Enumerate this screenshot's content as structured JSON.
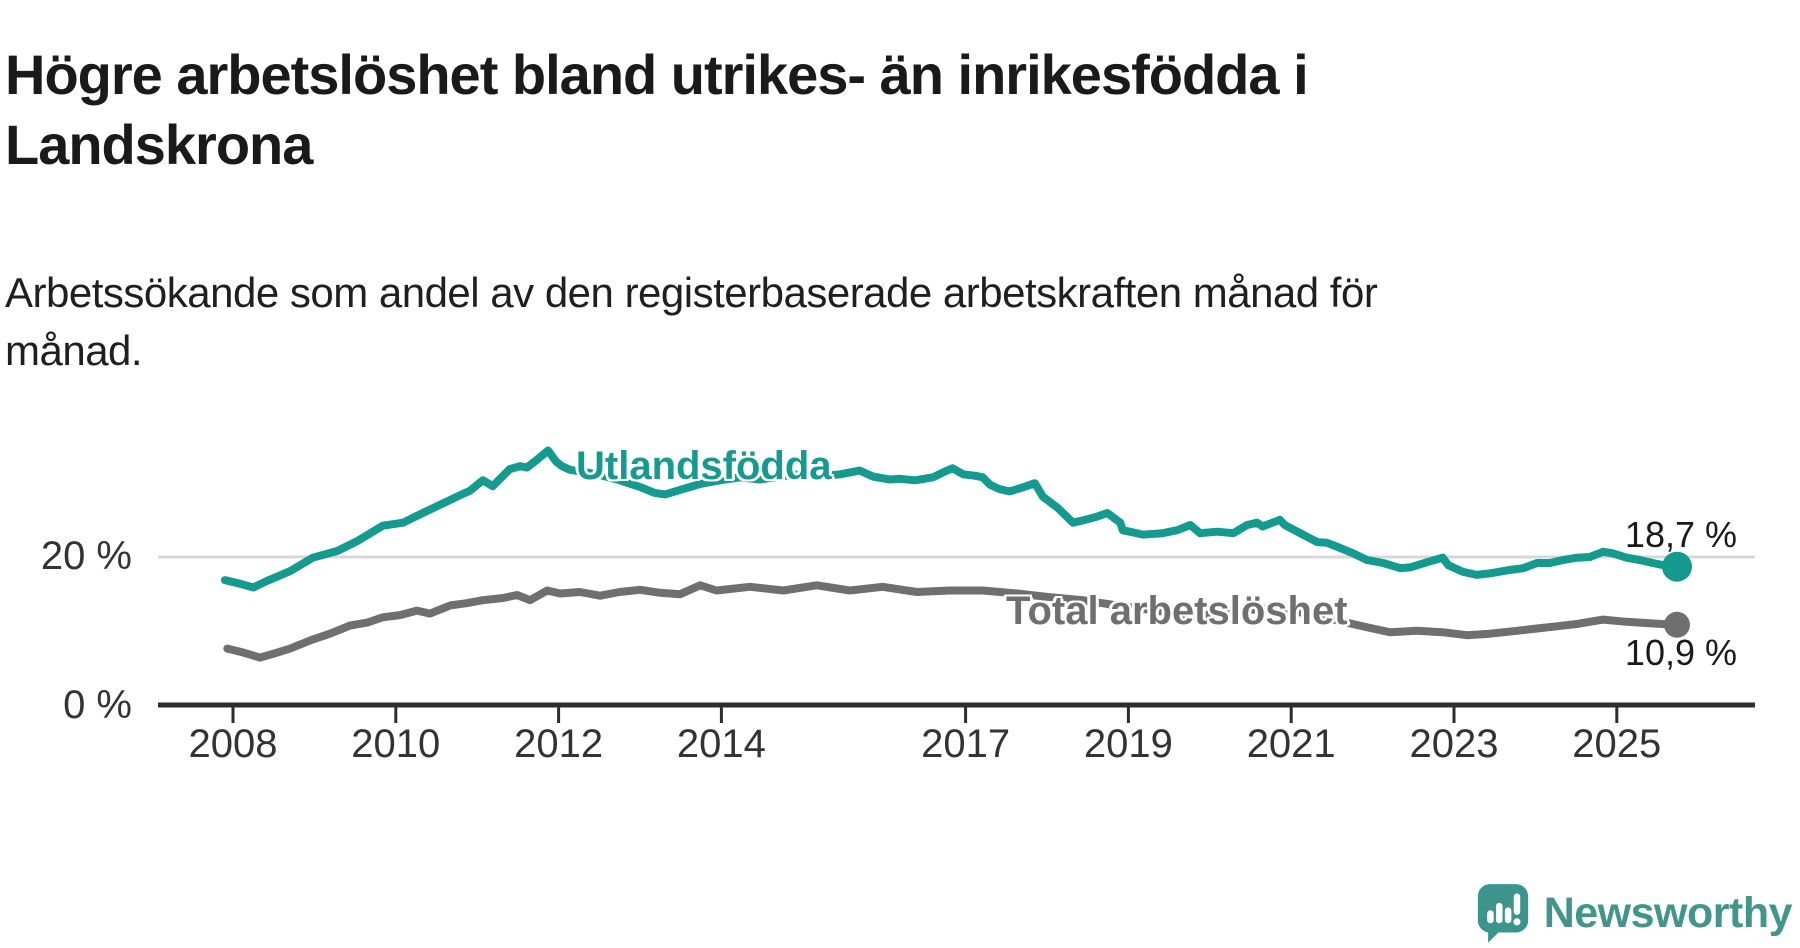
{
  "title_lines": [
    "Högre arbetslöshet bland utrikes- än inrikesfödda i",
    "Landskrona"
  ],
  "subtitle_lines": [
    "Arbetssökande som andel av den registerbaserade arbetskraften månad för",
    "månad."
  ],
  "footer": {
    "brand": "Newsworthy"
  },
  "chart_data": {
    "type": "line",
    "title": "Högre arbetslöshet bland utrikes- än inrikesfödda i Landskrona",
    "subtitle": "Arbetssökande som andel av den registerbaserade arbetskraften månad för månad.",
    "unit": "%",
    "xlim": [
      2007.9,
      2026.8
    ],
    "ylim": [
      0,
      36
    ],
    "grid": "horizontal line at 20% only",
    "legend_position": "inline labels on lines",
    "xticks": [
      2008,
      2010,
      2012,
      2014,
      2017,
      2019,
      2021,
      2023,
      2025
    ],
    "yticks": [
      {
        "value": 0,
        "label": "0 %"
      },
      {
        "value": 20,
        "label": "20 %"
      }
    ],
    "series": [
      {
        "id": "utlandsfodda",
        "name": "Utlandsfödda",
        "color": "#149a8e",
        "end_value": 18.7,
        "end_label": "18,7 %",
        "points": [
          [
            2007.9,
            16.9
          ],
          [
            2008.09,
            16.4
          ],
          [
            2008.25,
            15.9
          ],
          [
            2008.42,
            16.8
          ],
          [
            2008.7,
            18.1
          ],
          [
            2008.98,
            19.9
          ],
          [
            2009.28,
            20.8
          ],
          [
            2009.52,
            22.1
          ],
          [
            2009.84,
            24.2
          ],
          [
            2010.09,
            24.6
          ],
          [
            2010.33,
            25.9
          ],
          [
            2010.58,
            27.2
          ],
          [
            2010.79,
            28.3
          ],
          [
            2010.91,
            28.9
          ],
          [
            2011.07,
            30.3
          ],
          [
            2011.19,
            29.5
          ],
          [
            2011.4,
            31.8
          ],
          [
            2011.53,
            32.2
          ],
          [
            2011.61,
            32.0
          ],
          [
            2011.73,
            33.0
          ],
          [
            2011.87,
            34.3
          ],
          [
            2011.97,
            32.8
          ],
          [
            2012.04,
            32.2
          ],
          [
            2012.14,
            31.7
          ],
          [
            2012.32,
            31.4
          ],
          [
            2012.51,
            31.0
          ],
          [
            2012.75,
            30.3
          ],
          [
            2013.0,
            29.4
          ],
          [
            2013.18,
            28.6
          ],
          [
            2013.31,
            28.4
          ],
          [
            2013.49,
            29.0
          ],
          [
            2013.74,
            29.8
          ],
          [
            2013.98,
            30.3
          ],
          [
            2014.23,
            30.7
          ],
          [
            2014.47,
            30.4
          ],
          [
            2014.72,
            30.8
          ],
          [
            2014.96,
            31.1
          ],
          [
            2015.21,
            30.8
          ],
          [
            2015.46,
            31.1
          ],
          [
            2015.7,
            31.6
          ],
          [
            2015.86,
            30.8
          ],
          [
            2016.07,
            30.4
          ],
          [
            2016.19,
            30.5
          ],
          [
            2016.38,
            30.3
          ],
          [
            2016.6,
            30.7
          ],
          [
            2016.75,
            31.5
          ],
          [
            2016.84,
            31.9
          ],
          [
            2016.97,
            31.1
          ],
          [
            2017.12,
            30.9
          ],
          [
            2017.21,
            30.7
          ],
          [
            2017.3,
            29.7
          ],
          [
            2017.42,
            29.1
          ],
          [
            2017.54,
            28.8
          ],
          [
            2017.69,
            29.3
          ],
          [
            2017.85,
            29.9
          ],
          [
            2017.95,
            28.1
          ],
          [
            2018.13,
            26.6
          ],
          [
            2018.32,
            24.6
          ],
          [
            2018.47,
            25.0
          ],
          [
            2018.61,
            25.4
          ],
          [
            2018.74,
            25.9
          ],
          [
            2018.9,
            24.6
          ],
          [
            2018.93,
            23.6
          ],
          [
            2019.18,
            23.0
          ],
          [
            2019.42,
            23.2
          ],
          [
            2019.6,
            23.6
          ],
          [
            2019.76,
            24.3
          ],
          [
            2019.88,
            23.2
          ],
          [
            2020.09,
            23.4
          ],
          [
            2020.29,
            23.2
          ],
          [
            2020.46,
            24.3
          ],
          [
            2020.58,
            24.6
          ],
          [
            2020.65,
            24.1
          ],
          [
            2020.86,
            25.0
          ],
          [
            2020.92,
            24.3
          ],
          [
            2021.11,
            23.2
          ],
          [
            2021.32,
            22.0
          ],
          [
            2021.44,
            21.9
          ],
          [
            2021.56,
            21.4
          ],
          [
            2021.76,
            20.5
          ],
          [
            2021.93,
            19.6
          ],
          [
            2022.13,
            19.2
          ],
          [
            2022.34,
            18.5
          ],
          [
            2022.46,
            18.6
          ],
          [
            2022.67,
            19.3
          ],
          [
            2022.86,
            19.9
          ],
          [
            2022.93,
            18.9
          ],
          [
            2023.11,
            18.0
          ],
          [
            2023.28,
            17.6
          ],
          [
            2023.44,
            17.8
          ],
          [
            2023.65,
            18.2
          ],
          [
            2023.85,
            18.5
          ],
          [
            2024.02,
            19.2
          ],
          [
            2024.18,
            19.2
          ],
          [
            2024.34,
            19.6
          ],
          [
            2024.51,
            19.9
          ],
          [
            2024.67,
            20.0
          ],
          [
            2024.83,
            20.7
          ],
          [
            2024.95,
            20.5
          ],
          [
            2025.12,
            19.9
          ],
          [
            2025.28,
            19.6
          ],
          [
            2025.44,
            19.2
          ],
          [
            2025.62,
            18.8
          ],
          [
            2025.74,
            18.7
          ]
        ]
      },
      {
        "id": "total",
        "name": "Total arbetslöshet",
        "color": "#6f6f6f",
        "end_value": 10.9,
        "end_label": "10,9 %",
        "points": [
          [
            2007.93,
            7.7
          ],
          [
            2008.12,
            7.2
          ],
          [
            2008.33,
            6.5
          ],
          [
            2008.49,
            7.0
          ],
          [
            2008.7,
            7.7
          ],
          [
            2008.95,
            8.8
          ],
          [
            2009.19,
            9.7
          ],
          [
            2009.44,
            10.8
          ],
          [
            2009.65,
            11.2
          ],
          [
            2009.84,
            11.9
          ],
          [
            2010.05,
            12.2
          ],
          [
            2010.26,
            12.8
          ],
          [
            2010.42,
            12.4
          ],
          [
            2010.67,
            13.5
          ],
          [
            2010.87,
            13.8
          ],
          [
            2011.07,
            14.2
          ],
          [
            2011.32,
            14.5
          ],
          [
            2011.49,
            14.9
          ],
          [
            2011.65,
            14.2
          ],
          [
            2011.86,
            15.5
          ],
          [
            2012.02,
            15.1
          ],
          [
            2012.26,
            15.3
          ],
          [
            2012.51,
            14.8
          ],
          [
            2012.75,
            15.3
          ],
          [
            2013.0,
            15.6
          ],
          [
            2013.25,
            15.2
          ],
          [
            2013.49,
            15.0
          ],
          [
            2013.74,
            16.2
          ],
          [
            2013.94,
            15.5
          ],
          [
            2014.35,
            16.0
          ],
          [
            2014.76,
            15.5
          ],
          [
            2015.17,
            16.2
          ],
          [
            2015.58,
            15.5
          ],
          [
            2015.98,
            16.0
          ],
          [
            2016.4,
            15.3
          ],
          [
            2016.81,
            15.5
          ],
          [
            2017.21,
            15.5
          ],
          [
            2017.63,
            15.1
          ],
          [
            2018.04,
            14.6
          ],
          [
            2018.44,
            14.2
          ],
          [
            2018.8,
            13.6
          ],
          [
            2019.2,
            13.0
          ],
          [
            2019.6,
            12.4
          ],
          [
            2020.0,
            12.2
          ],
          [
            2020.3,
            12.8
          ],
          [
            2020.8,
            13.1
          ],
          [
            2021.2,
            12.4
          ],
          [
            2021.6,
            11.4
          ],
          [
            2022.0,
            10.4
          ],
          [
            2022.21,
            9.9
          ],
          [
            2022.54,
            10.1
          ],
          [
            2022.86,
            9.9
          ],
          [
            2023.16,
            9.5
          ],
          [
            2023.44,
            9.7
          ],
          [
            2023.77,
            10.1
          ],
          [
            2024.02,
            10.4
          ],
          [
            2024.26,
            10.7
          ],
          [
            2024.51,
            11.0
          ],
          [
            2024.83,
            11.6
          ],
          [
            2025.12,
            11.3
          ],
          [
            2025.4,
            11.1
          ],
          [
            2025.74,
            10.9
          ]
        ]
      }
    ]
  }
}
